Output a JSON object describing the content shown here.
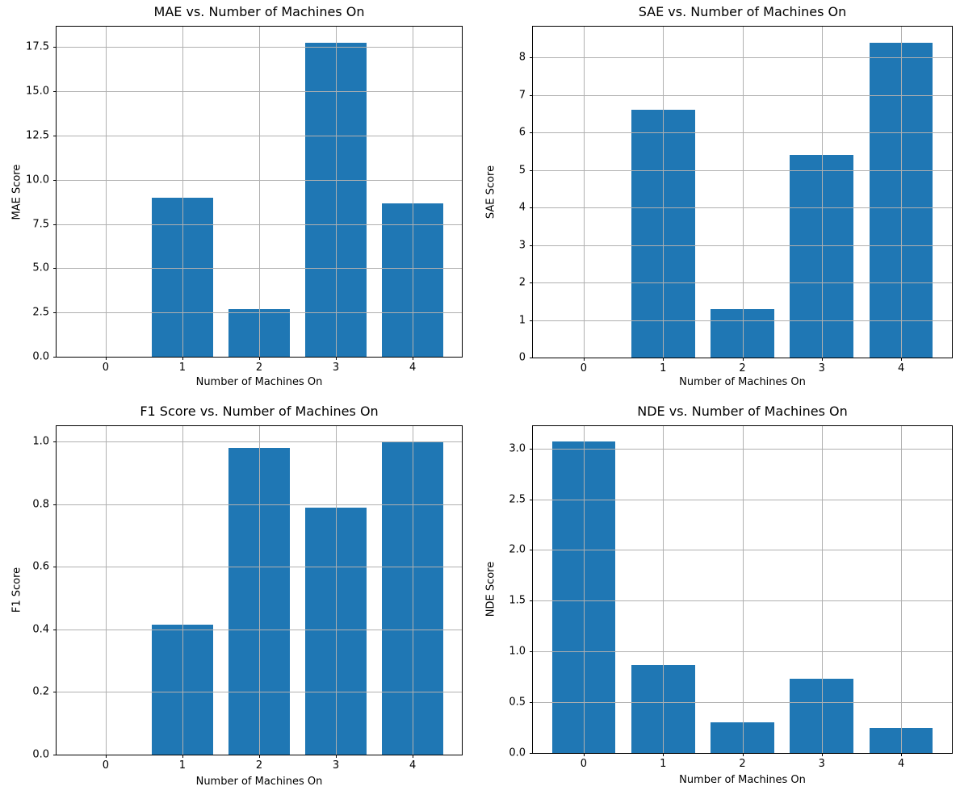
{
  "figure": {
    "background": "#ffffff",
    "bar_color": "#1f77b4",
    "grid_color": "#b0b0b0",
    "spine_color": "#000000",
    "text_color": "#000000"
  },
  "chart_data": [
    {
      "type": "bar",
      "title": "MAE vs. Number of Machines On",
      "xlabel": "Number of Machines On",
      "ylabel": "MAE Score",
      "categories": [
        0,
        1,
        2,
        3,
        4
      ],
      "values": [
        0,
        9.0,
        2.7,
        17.77,
        8.67
      ],
      "xtick_labels": [
        "0",
        "1",
        "2",
        "3",
        "4"
      ],
      "yticks": [
        0.0,
        2.5,
        5.0,
        7.5,
        10.0,
        12.5,
        15.0,
        17.5
      ],
      "ytick_labels": [
        "0.0",
        "2.5",
        "5.0",
        "7.5",
        "10.0",
        "12.5",
        "15.0",
        "17.5"
      ],
      "xlim": [
        -0.64,
        4.64
      ],
      "ylim": [
        0,
        18.66
      ],
      "bar_width": 0.8,
      "grid": true,
      "legend": null
    },
    {
      "type": "bar",
      "title": "SAE vs. Number of Machines On",
      "xlabel": "Number of Machines On",
      "ylabel": "SAE Score",
      "categories": [
        0,
        1,
        2,
        3,
        4
      ],
      "values": [
        0,
        6.6,
        1.29,
        5.39,
        8.4
      ],
      "xtick_labels": [
        "0",
        "1",
        "2",
        "3",
        "4"
      ],
      "yticks": [
        0,
        1,
        2,
        3,
        4,
        5,
        6,
        7,
        8
      ],
      "ytick_labels": [
        "0",
        "1",
        "2",
        "3",
        "4",
        "5",
        "6",
        "7",
        "8"
      ],
      "xlim": [
        -0.64,
        4.64
      ],
      "ylim": [
        0,
        8.82
      ],
      "bar_width": 0.8,
      "grid": true,
      "legend": null
    },
    {
      "type": "bar",
      "title": "F1 Score vs. Number of Machines On",
      "xlabel": "Number of Machines On",
      "ylabel": "F1 Score",
      "categories": [
        0,
        1,
        2,
        3,
        4
      ],
      "values": [
        0,
        0.415,
        0.98,
        0.79,
        1.0
      ],
      "xtick_labels": [
        "0",
        "1",
        "2",
        "3",
        "4"
      ],
      "yticks": [
        0.0,
        0.2,
        0.4,
        0.6,
        0.8,
        1.0
      ],
      "ytick_labels": [
        "0.0",
        "0.2",
        "0.4",
        "0.6",
        "0.8",
        "1.0"
      ],
      "xlim": [
        -0.64,
        4.64
      ],
      "ylim": [
        0,
        1.05
      ],
      "bar_width": 0.8,
      "grid": true,
      "legend": null
    },
    {
      "type": "bar",
      "title": "NDE vs. Number of Machines On",
      "xlabel": "Number of Machines On",
      "ylabel": "NDE Score",
      "categories": [
        0,
        1,
        2,
        3,
        4
      ],
      "values": [
        3.07,
        0.87,
        0.3,
        0.73,
        0.25
      ],
      "xtick_labels": [
        "0",
        "1",
        "2",
        "3",
        "4"
      ],
      "yticks": [
        0.0,
        0.5,
        1.0,
        1.5,
        2.0,
        2.5,
        3.0
      ],
      "ytick_labels": [
        "0.0",
        "0.5",
        "1.0",
        "1.5",
        "2.0",
        "2.5",
        "3.0"
      ],
      "xlim": [
        -0.64,
        4.64
      ],
      "ylim": [
        0,
        3.22
      ],
      "bar_width": 0.8,
      "grid": true,
      "legend": null
    }
  ]
}
